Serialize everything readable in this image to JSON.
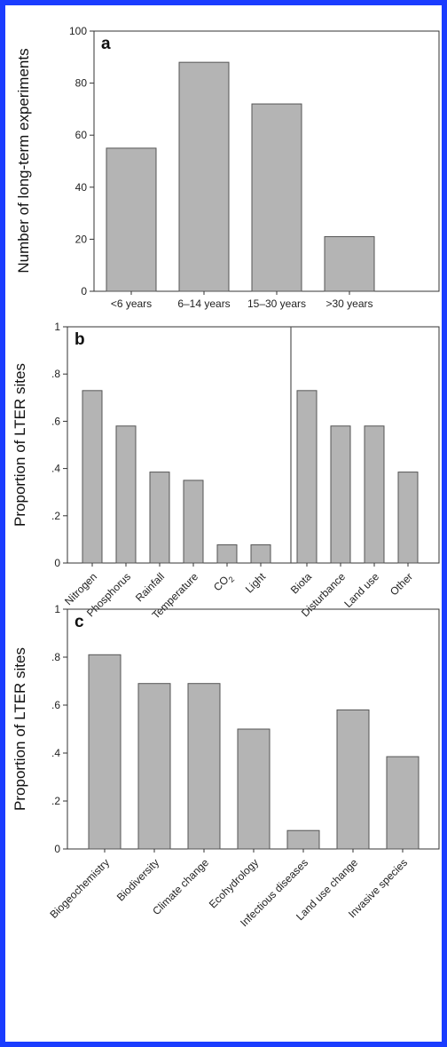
{
  "chart_data": [
    {
      "type": "bar",
      "panel_label": "a",
      "ylabel": "Number of long-term experiments",
      "ylim": [
        0,
        100
      ],
      "yticks": [
        "0",
        "20",
        "40",
        "60",
        "80",
        "100"
      ],
      "categories": [
        "<6 years",
        "6–14 years",
        "15–30 years",
        ">30 years"
      ],
      "values": [
        55,
        88,
        72,
        21
      ],
      "x_labels_rotated": false
    },
    {
      "type": "bar",
      "panel_label": "b",
      "ylabel": "Proportion of LTER sites",
      "ylim": [
        0,
        1
      ],
      "yticks": [
        "0",
        ".2",
        ".4",
        ".6",
        ".8",
        "1"
      ],
      "categories": [
        "Nitrogen",
        "Phosphorus",
        "Rainfall",
        "Temperature",
        "CO2",
        "Light",
        "Biota",
        "Disturbance",
        "Land use",
        "Other"
      ],
      "values": [
        0.73,
        0.58,
        0.385,
        0.35,
        0.077,
        0.077,
        0.73,
        0.58,
        0.58,
        0.385
      ],
      "groups": [
        6,
        4
      ],
      "x_labels_rotated": true
    },
    {
      "type": "bar",
      "panel_label": "c",
      "ylabel": "Proportion of LTER sites",
      "ylim": [
        0,
        1
      ],
      "yticks": [
        "0",
        ".2",
        ".4",
        ".6",
        ".8",
        "1"
      ],
      "categories": [
        "Biogeochemistry",
        "Biodiversity",
        "Climate change",
        "Ecohydrology",
        "Infectious diseases",
        "Land use change",
        "Invasive species"
      ],
      "values": [
        0.81,
        0.69,
        0.69,
        0.5,
        0.077,
        0.58,
        0.385
      ],
      "x_labels_rotated": true
    }
  ]
}
